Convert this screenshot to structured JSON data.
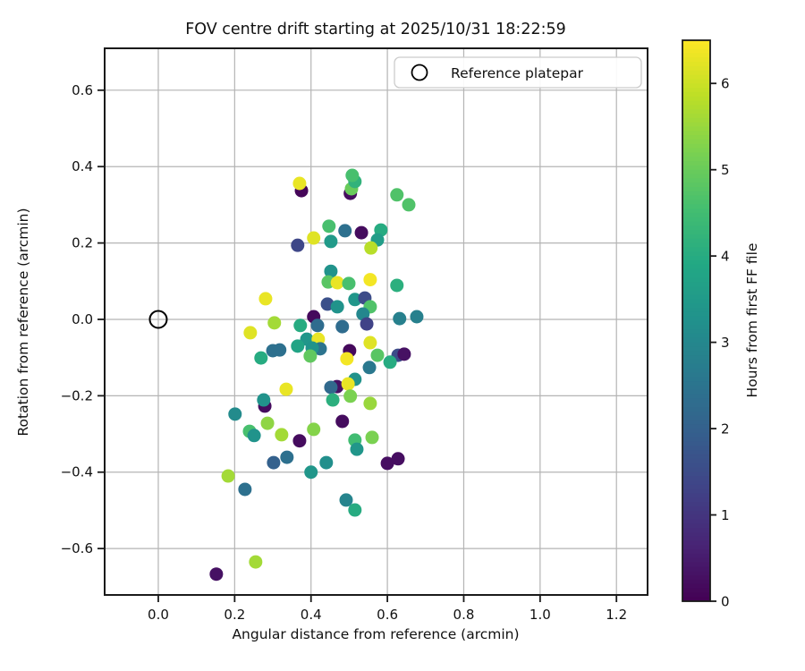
{
  "title": "FOV centre drift starting at 2025/10/31 18:22:59",
  "chart_data": {
    "type": "scatter",
    "title": "FOV centre drift starting at 2025/10/31 18:22:59",
    "xlabel": "Angular distance from reference (arcmin)",
    "ylabel": "Rotation from reference (arcmin)",
    "xlim": [
      -0.1405,
      1.2815
    ],
    "ylim": [
      -0.7215,
      0.7097
    ],
    "xticks": [
      0.0,
      0.2,
      0.4,
      0.6,
      0.8,
      1.0,
      1.2
    ],
    "yticks": [
      -0.6,
      -0.4,
      -0.2,
      0.0,
      0.2,
      0.4,
      0.6
    ],
    "grid": true,
    "legend": {
      "label": "Reference platepar",
      "marker": "open-circle",
      "position": "upper right"
    },
    "reference_point": {
      "x": 0.0,
      "y": 0.0
    },
    "colorbar": {
      "label": "Hours from first FF file",
      "ticks": [
        0,
        1,
        2,
        3,
        4,
        5,
        6
      ],
      "vmin": 0,
      "vmax": 6.5,
      "colormap": "viridis"
    },
    "points_format": [
      "x_arcmin",
      "y_arcmin",
      "hours"
    ],
    "points": [
      [
        0.375,
        0.337,
        0.1
      ],
      [
        0.37,
        0.356,
        6.3
      ],
      [
        0.503,
        0.33,
        0.2
      ],
      [
        0.506,
        0.342,
        5.0
      ],
      [
        0.515,
        0.361,
        4.2
      ],
      [
        0.508,
        0.377,
        4.6
      ],
      [
        0.625,
        0.326,
        4.7
      ],
      [
        0.656,
        0.3,
        4.7
      ],
      [
        0.447,
        0.244,
        4.6
      ],
      [
        0.489,
        0.232,
        2.4
      ],
      [
        0.532,
        0.227,
        0.2
      ],
      [
        0.583,
        0.234,
        4.0
      ],
      [
        0.407,
        0.213,
        6.2
      ],
      [
        0.452,
        0.204,
        3.5
      ],
      [
        0.365,
        0.194,
        1.4
      ],
      [
        0.574,
        0.208,
        3.6
      ],
      [
        0.557,
        0.187,
        5.8
      ],
      [
        0.281,
        0.054,
        6.3
      ],
      [
        0.452,
        0.126,
        3.3
      ],
      [
        0.445,
        0.098,
        4.8
      ],
      [
        0.469,
        0.096,
        6.3
      ],
      [
        0.499,
        0.094,
        4.6
      ],
      [
        0.555,
        0.104,
        6.4
      ],
      [
        0.625,
        0.089,
        4.1
      ],
      [
        0.443,
        0.04,
        1.6
      ],
      [
        0.469,
        0.033,
        3.3
      ],
      [
        0.515,
        0.052,
        3.4
      ],
      [
        0.541,
        0.056,
        1.5
      ],
      [
        0.555,
        0.033,
        4.7
      ],
      [
        0.536,
        0.014,
        3.0
      ],
      [
        0.407,
        0.007,
        0.15
      ],
      [
        0.417,
        -0.016,
        2.3
      ],
      [
        0.372,
        -0.016,
        4.0
      ],
      [
        0.482,
        -0.019,
        2.3
      ],
      [
        0.546,
        -0.012,
        1.3
      ],
      [
        0.632,
        0.002,
        2.8
      ],
      [
        0.677,
        0.007,
        2.8
      ],
      [
        0.304,
        -0.009,
        5.6
      ],
      [
        0.241,
        -0.035,
        6.2
      ],
      [
        0.389,
        -0.052,
        3.4
      ],
      [
        0.419,
        -0.052,
        6.3
      ],
      [
        0.555,
        -0.061,
        6.2
      ],
      [
        0.365,
        -0.07,
        3.8
      ],
      [
        0.3,
        -0.082,
        2.4
      ],
      [
        0.318,
        -0.08,
        2.4
      ],
      [
        0.269,
        -0.101,
        4.0
      ],
      [
        0.424,
        -0.077,
        2.5
      ],
      [
        0.403,
        -0.075,
        3.3
      ],
      [
        0.398,
        -0.096,
        4.9
      ],
      [
        0.501,
        -0.082,
        0.15
      ],
      [
        0.494,
        -0.103,
        6.4
      ],
      [
        0.574,
        -0.094,
        4.8
      ],
      [
        0.628,
        -0.094,
        1.5
      ],
      [
        0.644,
        -0.091,
        0.3
      ],
      [
        0.607,
        -0.112,
        4.0
      ],
      [
        0.553,
        -0.126,
        2.6
      ],
      [
        0.515,
        -0.157,
        3.3
      ],
      [
        0.468,
        -0.176,
        0.3
      ],
      [
        0.335,
        -0.183,
        6.3
      ],
      [
        0.452,
        -0.178,
        2.2
      ],
      [
        0.497,
        -0.169,
        6.3
      ],
      [
        0.503,
        -0.201,
        5.2
      ],
      [
        0.457,
        -0.211,
        4.1
      ],
      [
        0.555,
        -0.22,
        5.5
      ],
      [
        0.279,
        -0.227,
        0.2
      ],
      [
        0.276,
        -0.211,
        3.3
      ],
      [
        0.201,
        -0.248,
        3.1
      ],
      [
        0.482,
        -0.267,
        0.2
      ],
      [
        0.286,
        -0.272,
        5.4
      ],
      [
        0.407,
        -0.288,
        5.3
      ],
      [
        0.239,
        -0.293,
        4.6
      ],
      [
        0.251,
        -0.304,
        3.3
      ],
      [
        0.323,
        -0.302,
        5.6
      ],
      [
        0.37,
        -0.318,
        0.2
      ],
      [
        0.515,
        -0.316,
        4.5
      ],
      [
        0.56,
        -0.309,
        5.2
      ],
      [
        0.52,
        -0.34,
        3.4
      ],
      [
        0.337,
        -0.361,
        2.4
      ],
      [
        0.302,
        -0.375,
        2.0
      ],
      [
        0.44,
        -0.375,
        3.2
      ],
      [
        0.6,
        -0.377,
        0.25
      ],
      [
        0.628,
        -0.365,
        0.25
      ],
      [
        0.4,
        -0.4,
        3.4
      ],
      [
        0.183,
        -0.41,
        5.6
      ],
      [
        0.227,
        -0.445,
        2.4
      ],
      [
        0.492,
        -0.473,
        2.9
      ],
      [
        0.515,
        -0.499,
        4.0
      ],
      [
        0.152,
        -0.667,
        0.3
      ],
      [
        0.255,
        -0.635,
        5.6
      ]
    ]
  },
  "colors": {
    "frame": "#1a1a1a",
    "grid": "#b4b4b4",
    "legend_border": "#cccccc",
    "viridis_start": "#440154",
    "viridis_end": "#fde725"
  }
}
